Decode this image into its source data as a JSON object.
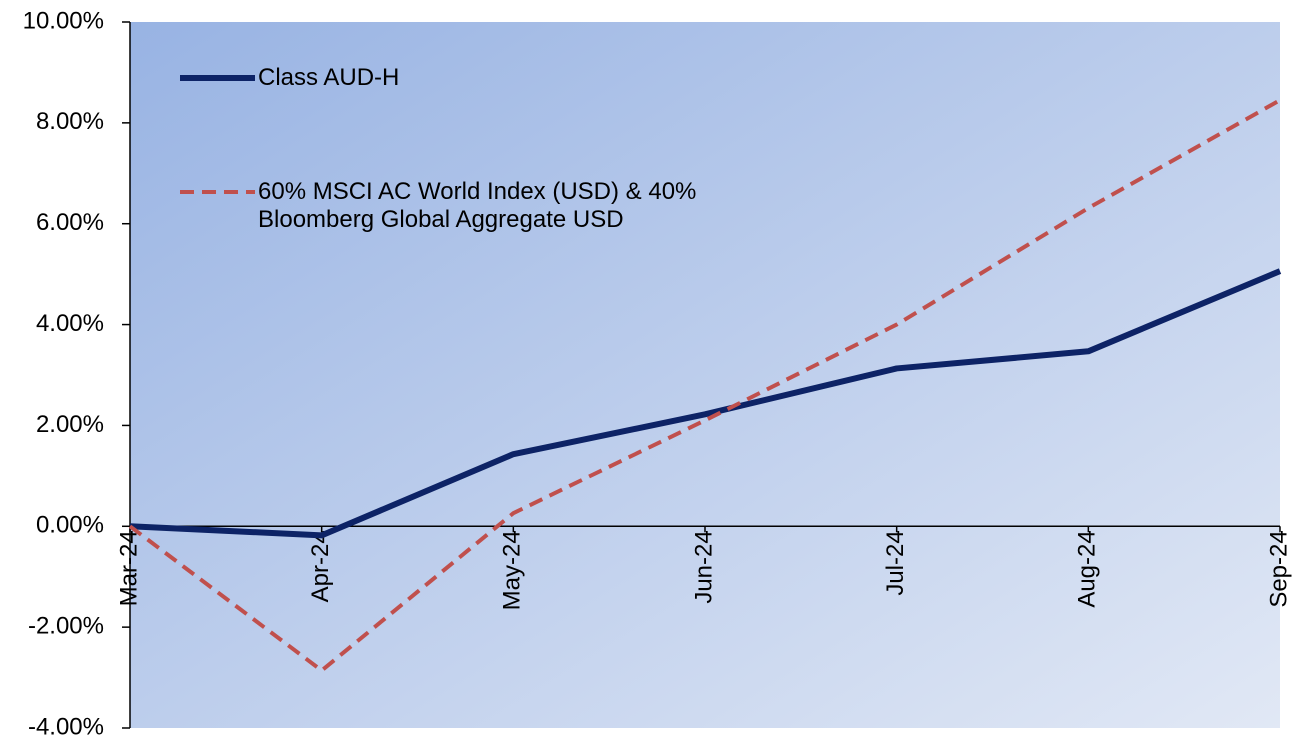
{
  "chart_data": {
    "type": "line",
    "categories": [
      "Mar-24",
      "Apr-24",
      "May-24",
      "Jun-24",
      "Jul-24",
      "Aug-24",
      "Sep-24"
    ],
    "series": [
      {
        "name": "Class AUD-H",
        "color": "#0d2366",
        "style": "solid",
        "values": [
          0,
          -0.18,
          1.43,
          2.22,
          3.13,
          3.47,
          5.06
        ]
      },
      {
        "name": "60% MSCI AC World Index (USD) & 40% Bloomberg Global Aggregate USD",
        "color": "#c0504d",
        "style": "dashed",
        "values": [
          0,
          -2.86,
          0.26,
          2.1,
          4.0,
          6.31,
          8.45
        ]
      }
    ],
    "ylim": [
      -4,
      10
    ],
    "yticks": [
      {
        "value": -4,
        "label": "-4.00%"
      },
      {
        "value": -2,
        "label": "-2.00%"
      },
      {
        "value": 0,
        "label": "0.00%"
      },
      {
        "value": 2,
        "label": "2.00%"
      },
      {
        "value": 4,
        "label": "4.00%"
      },
      {
        "value": 6,
        "label": "6.00%"
      },
      {
        "value": 8,
        "label": "8.00%"
      },
      {
        "value": 10,
        "label": "10.00%"
      }
    ],
    "grid": false,
    "legend": "upper left"
  }
}
